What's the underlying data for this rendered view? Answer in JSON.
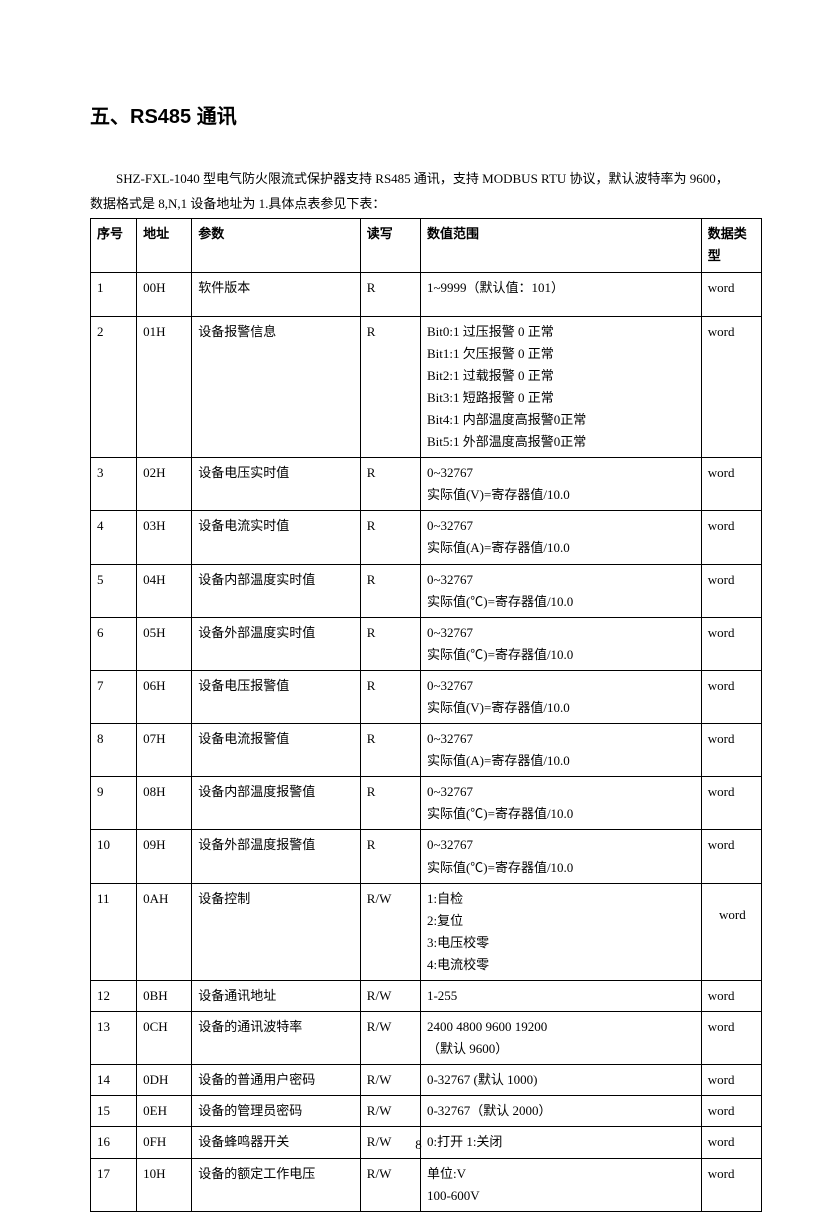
{
  "section_title": "五、RS485 通讯",
  "intro_line1": "SHZ-FXL-1040 型电气防火限流式保护器支持 RS485 通讯，支持 MODBUS RTU 协议，默认波特率为 9600，",
  "intro_line2": "数据格式是 8,N,1 设备地址为 1.具体点表参见下表：",
  "table": {
    "headers": [
      "序号",
      "地址",
      "参数",
      "读写",
      "数值范围",
      "数据类型"
    ],
    "rows": [
      {
        "seq": "1",
        "addr": "00H",
        "param": "软件版本",
        "rw": "R",
        "range": [
          "1~9999（默认值：101）"
        ],
        "type": "word",
        "tall": true
      },
      {
        "seq": "2",
        "addr": "01H",
        "param": "设备报警信息",
        "rw": "R",
        "range": [
          "Bit0:1 过压报警 0  正常",
          "Bit1:1 欠压报警 0   正常",
          "Bit2:1 过载报警 0  正常",
          "Bit3:1 短路报警 0 正常",
          "Bit4:1 内部温度高报警0正常",
          "Bit5:1 外部温度高报警0正常"
        ],
        "type": "word"
      },
      {
        "seq": "3",
        "addr": "02H",
        "param": "设备电压实时值",
        "rw": "R",
        "range": [
          "0~32767",
          "实际值(V)=寄存器值/10.0"
        ],
        "type": "word"
      },
      {
        "seq": "4",
        "addr": "03H",
        "param": "设备电流实时值",
        "rw": "R",
        "range": [
          "0~32767",
          "实际值(A)=寄存器值/10.0"
        ],
        "type": "word"
      },
      {
        "seq": "5",
        "addr": "04H",
        "param": "设备内部温度实时值",
        "rw": "R",
        "range": [
          "0~32767",
          "实际值(℃)=寄存器值/10.0"
        ],
        "type": "word"
      },
      {
        "seq": "6",
        "addr": "05H",
        "param": "设备外部温度实时值",
        "rw": "R",
        "range": [
          "0~32767",
          "实际值(℃)=寄存器值/10.0"
        ],
        "type": "word"
      },
      {
        "seq": "7",
        "addr": "06H",
        "param": "设备电压报警值",
        "rw": "R",
        "range": [
          "0~32767",
          "实际值(V)=寄存器值/10.0"
        ],
        "type": "word"
      },
      {
        "seq": "8",
        "addr": "07H",
        "param": "设备电流报警值",
        "rw": "R",
        "range": [
          "0~32767",
          "实际值(A)=寄存器值/10.0"
        ],
        "type": "word"
      },
      {
        "seq": "9",
        "addr": "08H",
        "param": "设备内部温度报警值",
        "rw": "R",
        "range": [
          "0~32767",
          "实际值(℃)=寄存器值/10.0"
        ],
        "type": "word"
      },
      {
        "seq": "10",
        "addr": "09H",
        "param": "设备外部温度报警值",
        "rw": "R",
        "range": [
          "0~32767",
          "实际值(℃)=寄存器值/10.0"
        ],
        "type": "word"
      },
      {
        "seq": "11",
        "addr": "0AH",
        "param": "设备控制",
        "rw": "R/W",
        "range": [
          "1:自检",
          "2:复位",
          "3:电压校零",
          "4:电流校零"
        ],
        "type": "word",
        "type_center": true
      },
      {
        "seq": "12",
        "addr": "0BH",
        "param": "设备通讯地址",
        "rw": "R/W",
        "range": [
          "1-255"
        ],
        "type": "word"
      },
      {
        "seq": "13",
        "addr": "0CH",
        "param": "设备的通讯波特率",
        "rw": "R/W",
        "range": [
          "2400 4800 9600 19200",
          "（默认 9600）"
        ],
        "type": "word"
      },
      {
        "seq": "14",
        "addr": "0DH",
        "param": "设备的普通用户密码",
        "rw": "R/W",
        "range": [
          "0-32767 (默认 1000)"
        ],
        "type": "word"
      },
      {
        "seq": "15",
        "addr": "0EH",
        "param": "设备的管理员密码",
        "rw": "R/W",
        "range": [
          "0-32767（默认 2000）"
        ],
        "type": "word"
      },
      {
        "seq": "16",
        "addr": "0FH",
        "param": "设备蜂鸣器开关",
        "rw": "R/W",
        "range": [
          "0:打开 1:关闭"
        ],
        "type": "word"
      },
      {
        "seq": "17",
        "addr": "10H",
        "param": "设备的额定工作电压",
        "rw": "R/W",
        "range": [
          "单位:V",
          "100-600V"
        ],
        "type": "word"
      }
    ]
  },
  "page_number": "8"
}
